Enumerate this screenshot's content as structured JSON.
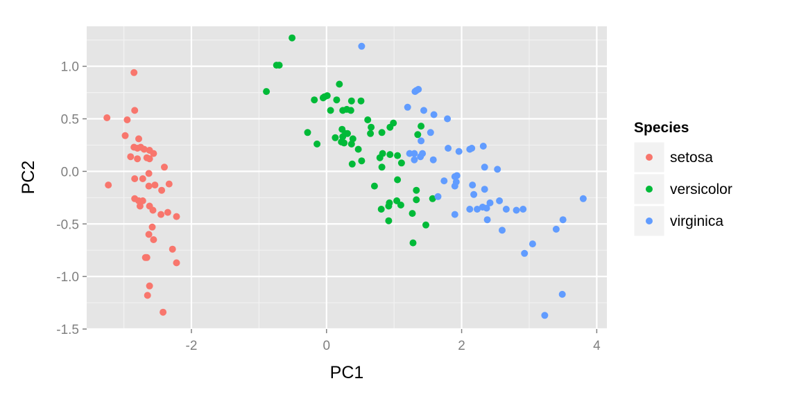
{
  "chart_data": {
    "type": "scatter",
    "title": "",
    "xlabel": "PC1",
    "ylabel": "PC2",
    "xlim": [
      -3.55,
      4.15
    ],
    "ylim": [
      -1.5,
      1.38
    ],
    "xticks": [
      -2,
      0,
      2,
      4
    ],
    "xtick_labels": [
      "-2",
      "0",
      "2",
      "4"
    ],
    "yticks": [
      -1.5,
      -1.0,
      -0.5,
      0.0,
      0.5,
      1.0
    ],
    "ytick_labels": [
      "-1.5",
      "-1.0",
      "-0.5",
      "0.0",
      "0.5",
      "1.0"
    ],
    "grid": true,
    "legend": {
      "title": "Species",
      "position": "right"
    },
    "series": [
      {
        "name": "setosa",
        "color": "#F8766D",
        "points": [
          [
            -2.85,
            0.94
          ],
          [
            -2.84,
            0.58
          ],
          [
            -2.95,
            0.49
          ],
          [
            -3.25,
            0.51
          ],
          [
            -2.98,
            0.34
          ],
          [
            -2.78,
            0.31
          ],
          [
            -2.85,
            0.23
          ],
          [
            -2.75,
            0.23
          ],
          [
            -2.8,
            0.22
          ],
          [
            -2.7,
            0.21
          ],
          [
            -2.62,
            0.2
          ],
          [
            -2.56,
            0.17
          ],
          [
            -2.9,
            0.14
          ],
          [
            -2.8,
            0.12
          ],
          [
            -2.66,
            0.13
          ],
          [
            -2.62,
            0.12
          ],
          [
            -2.4,
            0.04
          ],
          [
            -2.84,
            -0.07
          ],
          [
            -2.63,
            -0.02
          ],
          [
            -2.72,
            -0.07
          ],
          [
            -2.54,
            -0.13
          ],
          [
            -2.63,
            -0.14
          ],
          [
            -2.33,
            -0.12
          ],
          [
            -2.44,
            -0.18
          ],
          [
            -3.23,
            -0.13
          ],
          [
            -2.84,
            -0.26
          ],
          [
            -2.78,
            -0.28
          ],
          [
            -2.72,
            -0.28
          ],
          [
            -2.76,
            -0.33
          ],
          [
            -2.62,
            -0.33
          ],
          [
            -2.57,
            -0.37
          ],
          [
            -2.45,
            -0.41
          ],
          [
            -2.35,
            -0.39
          ],
          [
            -2.58,
            -0.53
          ],
          [
            -2.22,
            -0.43
          ],
          [
            -2.63,
            -0.6
          ],
          [
            -2.56,
            -0.65
          ],
          [
            -2.68,
            -0.82
          ],
          [
            -2.66,
            -0.82
          ],
          [
            -2.28,
            -0.74
          ],
          [
            -2.22,
            -0.87
          ],
          [
            -2.62,
            -1.09
          ],
          [
            -2.65,
            -1.18
          ],
          [
            -2.42,
            -1.34
          ]
        ]
      },
      {
        "name": "versicolor",
        "color": "#00BA38",
        "points": [
          [
            -0.51,
            1.27
          ],
          [
            -0.74,
            1.01
          ],
          [
            -0.7,
            1.01
          ],
          [
            -0.89,
            0.76
          ],
          [
            0.19,
            0.83
          ],
          [
            0.01,
            0.72
          ],
          [
            -0.03,
            0.71
          ],
          [
            -0.05,
            0.7
          ],
          [
            -0.18,
            0.68
          ],
          [
            0.15,
            0.68
          ],
          [
            0.37,
            0.67
          ],
          [
            0.51,
            0.67
          ],
          [
            0.3,
            0.59
          ],
          [
            0.06,
            0.58
          ],
          [
            0.24,
            0.58
          ],
          [
            0.36,
            0.58
          ],
          [
            0.61,
            0.49
          ],
          [
            0.99,
            0.46
          ],
          [
            0.94,
            0.42
          ],
          [
            0.66,
            0.42
          ],
          [
            1.4,
            0.43
          ],
          [
            0.23,
            0.4
          ],
          [
            0.31,
            0.36
          ],
          [
            0.28,
            0.36
          ],
          [
            0.24,
            0.33
          ],
          [
            0.82,
            0.37
          ],
          [
            -0.28,
            0.37
          ],
          [
            1.35,
            0.35
          ],
          [
            0.65,
            0.36
          ],
          [
            0.13,
            0.32
          ],
          [
            0.39,
            0.31
          ],
          [
            0.26,
            0.27
          ],
          [
            0.22,
            0.28
          ],
          [
            0.47,
            0.21
          ],
          [
            -0.14,
            0.26
          ],
          [
            0.37,
            0.26
          ],
          [
            0.83,
            0.17
          ],
          [
            0.94,
            0.16
          ],
          [
            1.05,
            0.15
          ],
          [
            0.79,
            0.13
          ],
          [
            1.11,
            0.08
          ],
          [
            0.52,
            0.1
          ],
          [
            0.38,
            0.07
          ],
          [
            0.82,
            0.04
          ],
          [
            1.05,
            -0.08
          ],
          [
            0.71,
            -0.14
          ],
          [
            1.33,
            -0.18
          ],
          [
            0.93,
            -0.3
          ],
          [
            0.92,
            -0.33
          ],
          [
            0.81,
            -0.36
          ],
          [
            1.04,
            -0.28
          ],
          [
            1.1,
            -0.32
          ],
          [
            1.33,
            -0.27
          ],
          [
            1.57,
            -0.26
          ],
          [
            1.27,
            -0.4
          ],
          [
            0.92,
            -0.47
          ],
          [
            1.47,
            -0.51
          ],
          [
            1.28,
            -0.68
          ]
        ]
      },
      {
        "name": "virginica",
        "color": "#619CFF",
        "points": [
          [
            0.52,
            1.19
          ],
          [
            1.33,
            0.77
          ],
          [
            1.31,
            0.76
          ],
          [
            1.36,
            0.78
          ],
          [
            1.2,
            0.61
          ],
          [
            1.44,
            0.58
          ],
          [
            1.59,
            0.54
          ],
          [
            1.79,
            0.5
          ],
          [
            1.54,
            0.37
          ],
          [
            1.4,
            0.29
          ],
          [
            1.8,
            0.22
          ],
          [
            1.96,
            0.19
          ],
          [
            2.12,
            0.21
          ],
          [
            2.15,
            0.22
          ],
          [
            2.32,
            0.24
          ],
          [
            1.23,
            0.17
          ],
          [
            1.3,
            0.17
          ],
          [
            1.42,
            0.17
          ],
          [
            1.39,
            0.14
          ],
          [
            1.3,
            0.11
          ],
          [
            1.58,
            0.11
          ],
          [
            2.34,
            0.04
          ],
          [
            2.53,
            0.02
          ],
          [
            1.93,
            -0.04
          ],
          [
            1.9,
            -0.05
          ],
          [
            1.92,
            -0.1
          ],
          [
            1.74,
            -0.09
          ],
          [
            1.9,
            -0.14
          ],
          [
            2.16,
            -0.13
          ],
          [
            2.34,
            -0.17
          ],
          [
            2.18,
            -0.22
          ],
          [
            1.65,
            -0.24
          ],
          [
            2.56,
            -0.28
          ],
          [
            2.42,
            -0.3
          ],
          [
            2.37,
            -0.35
          ],
          [
            2.12,
            -0.36
          ],
          [
            2.23,
            -0.36
          ],
          [
            2.31,
            -0.34
          ],
          [
            2.81,
            -0.37
          ],
          [
            2.91,
            -0.36
          ],
          [
            2.66,
            -0.36
          ],
          [
            1.9,
            -0.41
          ],
          [
            2.6,
            -0.56
          ],
          [
            2.38,
            -0.46
          ],
          [
            3.4,
            -0.55
          ],
          [
            3.5,
            -0.46
          ],
          [
            3.8,
            -0.26
          ],
          [
            3.05,
            -0.69
          ],
          [
            2.93,
            -0.78
          ],
          [
            3.49,
            -1.17
          ],
          [
            3.23,
            -1.37
          ]
        ]
      }
    ]
  }
}
